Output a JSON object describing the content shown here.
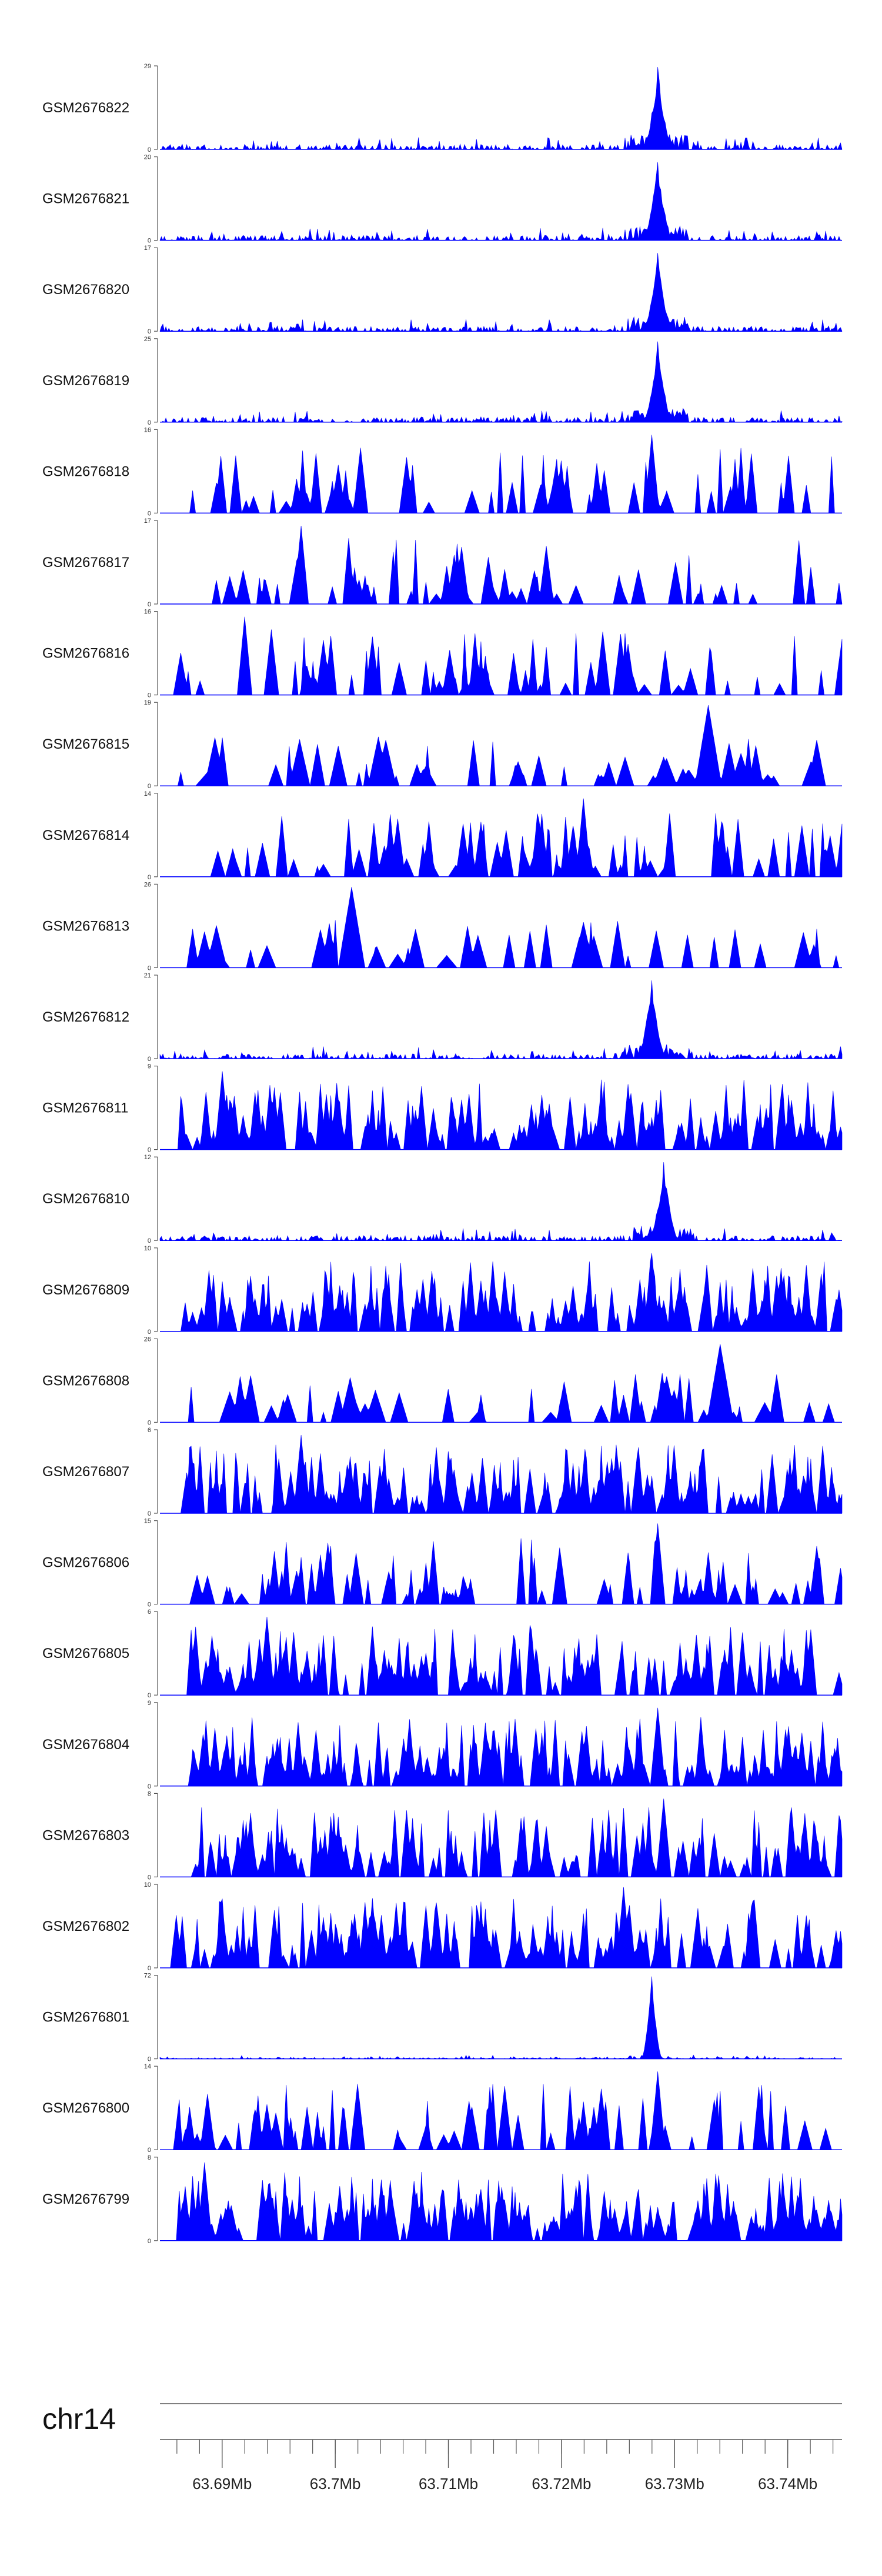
{
  "chart_data": {
    "type": "area",
    "title": "",
    "chromosome": "chr14",
    "x_range_mb": [
      63.6845,
      63.7448
    ],
    "fill_color": "#0000ff",
    "x_tick_labels": [
      "63.69Mb",
      "63.7Mb",
      "63.71Mb",
      "63.72Mb",
      "63.73Mb",
      "63.74Mb"
    ],
    "x_ticks_mb": [
      63.69,
      63.7,
      63.71,
      63.72,
      63.73,
      63.74
    ],
    "minor_tick_step_mb": 0.002,
    "tracks": [
      {
        "name": "GSM2676822",
        "ymax": 29,
        "ymin": 0,
        "style": "sparse",
        "peak_mb": 63.7285,
        "peak_frac": 1.0
      },
      {
        "name": "GSM2676821",
        "ymax": 20,
        "ymin": 0,
        "style": "sparse",
        "peak_mb": 63.7285,
        "peak_frac": 0.95
      },
      {
        "name": "GSM2676820",
        "ymax": 17,
        "ymin": 0,
        "style": "sparse",
        "peak_mb": 63.7285,
        "peak_frac": 0.95
      },
      {
        "name": "GSM2676819",
        "ymax": 25,
        "ymin": 0,
        "style": "sparse",
        "peak_mb": 63.7285,
        "peak_frac": 0.98
      },
      {
        "name": "GSM2676818",
        "ymax": 16,
        "ymin": 0,
        "style": "spiky",
        "peak_mb": 63.728,
        "peak_frac": 0.95
      },
      {
        "name": "GSM2676817",
        "ymax": 17,
        "ymin": 0,
        "style": "spiky",
        "peak_mb": 63.697,
        "peak_frac": 0.95
      },
      {
        "name": "GSM2676816",
        "ymax": 16,
        "ymin": 0,
        "style": "spiky",
        "peak_mb": 63.692,
        "peak_frac": 0.95
      },
      {
        "name": "GSM2676815",
        "ymax": 19,
        "ymin": 0,
        "style": "triangles",
        "peak_mb": 63.733,
        "peak_frac": 0.98
      },
      {
        "name": "GSM2676814",
        "ymax": 14,
        "ymin": 0,
        "style": "spiky",
        "peak_mb": 63.722,
        "peak_frac": 0.95
      },
      {
        "name": "GSM2676813",
        "ymax": 26,
        "ymin": 0,
        "style": "triangles",
        "peak_mb": 63.7015,
        "peak_frac": 0.98
      },
      {
        "name": "GSM2676812",
        "ymax": 21,
        "ymin": 0,
        "style": "sparse",
        "peak_mb": 63.728,
        "peak_frac": 0.95
      },
      {
        "name": "GSM2676811",
        "ymax": 9,
        "ymin": 0,
        "style": "dense",
        "peak_mb": 63.69,
        "peak_frac": 0.95
      },
      {
        "name": "GSM2676810",
        "ymax": 12,
        "ymin": 0,
        "style": "sparse",
        "peak_mb": 63.729,
        "peak_frac": 0.95
      },
      {
        "name": "GSM2676809",
        "ymax": 10,
        "ymin": 0,
        "style": "dense",
        "peak_mb": 63.728,
        "peak_frac": 0.95
      },
      {
        "name": "GSM2676808",
        "ymax": 26,
        "ymin": 0,
        "style": "triangles",
        "peak_mb": 63.734,
        "peak_frac": 0.95
      },
      {
        "name": "GSM2676807",
        "ymax": 6,
        "ymin": 0,
        "style": "dense",
        "peak_mb": 63.697,
        "peak_frac": 0.95
      },
      {
        "name": "GSM2676806",
        "ymax": 15,
        "ymin": 0,
        "style": "spiky",
        "peak_mb": 63.7285,
        "peak_frac": 0.98
      },
      {
        "name": "GSM2676805",
        "ymax": 6,
        "ymin": 0,
        "style": "dense",
        "peak_mb": 63.694,
        "peak_frac": 0.95
      },
      {
        "name": "GSM2676804",
        "ymax": 9,
        "ymin": 0,
        "style": "dense",
        "peak_mb": 63.7285,
        "peak_frac": 0.95
      },
      {
        "name": "GSM2676803",
        "ymax": 8,
        "ymin": 0,
        "style": "dense",
        "peak_mb": 63.729,
        "peak_frac": 0.95
      },
      {
        "name": "GSM2676802",
        "ymax": 10,
        "ymin": 0,
        "style": "dense",
        "peak_mb": 63.7255,
        "peak_frac": 0.98
      },
      {
        "name": "GSM2676801",
        "ymax": 72,
        "ymin": 0,
        "style": "single",
        "peak_mb": 63.728,
        "peak_frac": 1.0
      },
      {
        "name": "GSM2676800",
        "ymax": 14,
        "ymin": 0,
        "style": "spiky",
        "peak_mb": 63.7285,
        "peak_frac": 0.95
      },
      {
        "name": "GSM2676799",
        "ymax": 8,
        "ymin": 0,
        "style": "dense",
        "peak_mb": 63.6885,
        "peak_frac": 0.95
      }
    ]
  }
}
